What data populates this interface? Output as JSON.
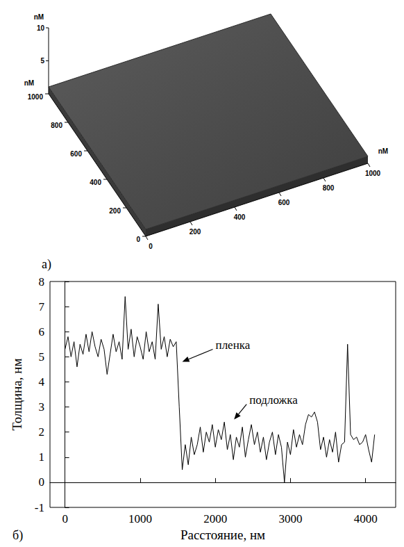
{
  "chart_data": [
    {
      "type": "surface3d",
      "panel_label": "а)",
      "color": "#4d4d4d",
      "x_label": "nM",
      "y_label": "nM",
      "z_label": "nM",
      "xlim": [
        0,
        1000
      ],
      "xticks": [
        0,
        200,
        400,
        600,
        800,
        1000
      ],
      "ylim": [
        0,
        1000
      ],
      "yticks": [
        0,
        200,
        400,
        600,
        800,
        1000
      ],
      "zlim": [
        0,
        10
      ],
      "zticks": [
        5,
        10
      ]
    },
    {
      "type": "line",
      "panel_label": "б)",
      "color": "#000000",
      "grid": false,
      "x_label": "Расстояние, нм",
      "y_label": "Толщина, нм",
      "xlim": [
        -200,
        4400
      ],
      "xticks": [
        0,
        1000,
        2000,
        3000,
        4000
      ],
      "ylim": [
        -1,
        8
      ],
      "yticks": [
        -1,
        0,
        1,
        2,
        3,
        4,
        5,
        6,
        7,
        8
      ],
      "x": [
        0,
        40,
        80,
        120,
        160,
        200,
        240,
        280,
        320,
        360,
        400,
        440,
        480,
        520,
        560,
        600,
        640,
        680,
        720,
        760,
        800,
        840,
        880,
        920,
        960,
        1000,
        1040,
        1080,
        1120,
        1160,
        1200,
        1240,
        1280,
        1320,
        1360,
        1400,
        1440,
        1480,
        1520,
        1560,
        1600,
        1640,
        1680,
        1720,
        1760,
        1800,
        1840,
        1880,
        1920,
        1960,
        2000,
        2040,
        2080,
        2120,
        2160,
        2200,
        2240,
        2280,
        2320,
        2360,
        2400,
        2440,
        2480,
        2520,
        2560,
        2600,
        2640,
        2680,
        2720,
        2760,
        2800,
        2840,
        2880,
        2920,
        2960,
        3000,
        3040,
        3080,
        3120,
        3160,
        3200,
        3240,
        3280,
        3320,
        3360,
        3400,
        3440,
        3480,
        3520,
        3560,
        3600,
        3640,
        3680,
        3720,
        3760,
        3800,
        3840,
        3880,
        3920,
        3960,
        4000,
        4040,
        4080,
        4120
      ],
      "values": [
        5.3,
        5.8,
        5.0,
        5.6,
        4.6,
        5.5,
        5.1,
        5.9,
        5.2,
        6.0,
        5.4,
        5.0,
        5.7,
        5.3,
        4.3,
        5.1,
        5.9,
        5.2,
        5.6,
        4.9,
        7.4,
        5.3,
        6.1,
        5.0,
        5.8,
        5.4,
        4.9,
        6.0,
        5.2,
        5.6,
        4.9,
        7.1,
        5.3,
        5.8,
        5.0,
        5.7,
        5.4,
        5.6,
        3.0,
        0.5,
        1.5,
        0.7,
        1.8,
        1.1,
        1.5,
        2.2,
        1.2,
        2.0,
        1.6,
        2.3,
        1.4,
        2.1,
        1.7,
        2.4,
        1.3,
        1.9,
        0.9,
        1.8,
        1.4,
        2.2,
        1.0,
        1.7,
        2.3,
        1.5,
        2.0,
        1.2,
        1.8,
        0.9,
        1.6,
        2.0,
        1.1,
        1.9,
        1.4,
        0.0,
        1.6,
        1.1,
        2.1,
        1.4,
        1.9,
        1.5,
        2.3,
        2.7,
        2.6,
        2.8,
        2.4,
        1.3,
        1.8,
        1.0,
        1.7,
        1.2,
        2.0,
        0.8,
        1.5,
        1.6,
        5.5,
        1.9,
        1.7,
        1.8,
        1.5,
        1.6,
        1.9,
        1.3,
        0.8,
        1.9
      ],
      "annotations": [
        {
          "text": "пленка",
          "x": 1560,
          "y": 4.8
        },
        {
          "text": "подложка",
          "x": 2250,
          "y": 2.5
        }
      ]
    }
  ]
}
